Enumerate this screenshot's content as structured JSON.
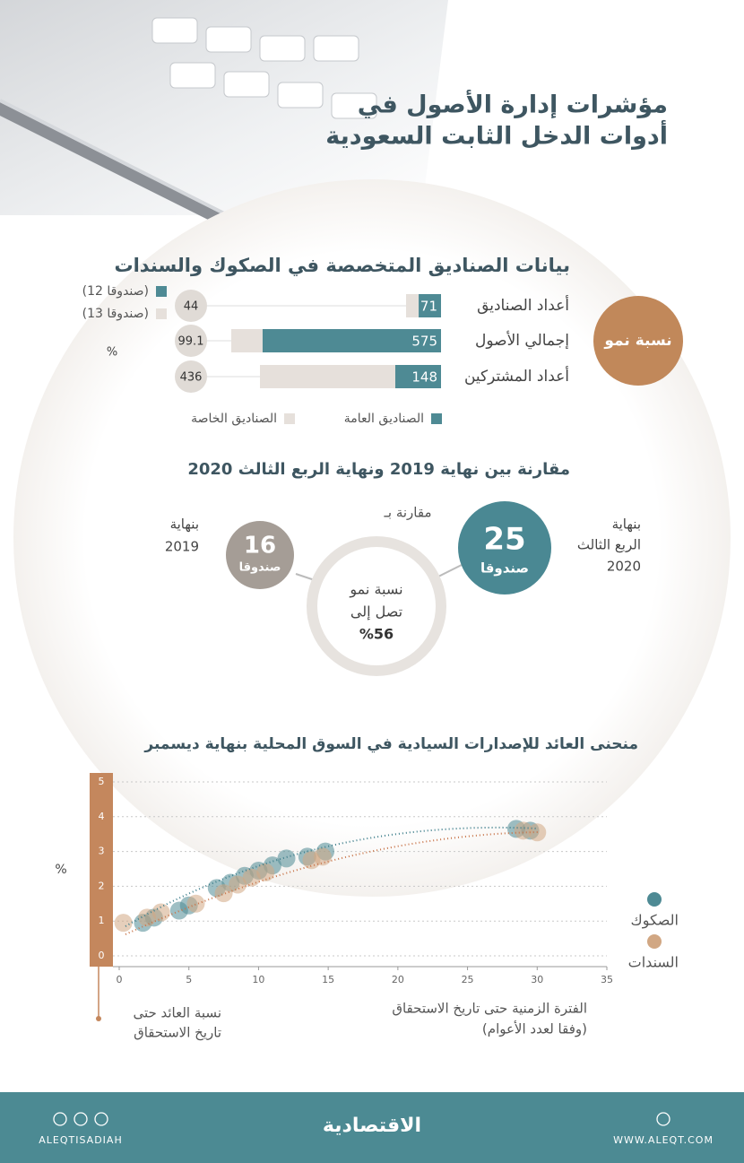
{
  "header": {
    "title_lines": [
      "مؤشرات إدارة الأصول في",
      "أدوات الدخل الثابت السعودية"
    ]
  },
  "chart_data": [
    {
      "type": "bar",
      "orientation": "horizontal",
      "stacked": true,
      "title": "بيانات الصناديق المتخصصة في الصكوك والسندات",
      "categories": [
        "أعداد الصناديق",
        "إجمالي الأصول",
        "أعداد المشتركين"
      ],
      "series": [
        {
          "name": "الصناديق العامة",
          "color": "#4e8a94",
          "values": [
            71,
            575,
            148
          ],
          "count_label": "(12 صندوقا)"
        },
        {
          "name": "الصناديق الخاصة",
          "color": "#e6e0db",
          "values": [
            40,
            101,
            438
          ],
          "count_label": "(13 صندوقا)"
        }
      ],
      "growth": {
        "title": "نسبة نمو",
        "unit": "%",
        "values": [
          44,
          99.1,
          436
        ]
      }
    },
    {
      "type": "scatter",
      "title": "منحنى العائد للإصدارات السيادية في السوق المحلية بنهاية ديسمبر",
      "x_label": [
        "الفترة الزمنية حتى تاريخ الاستحقاق",
        "(وفقا لعدد الأعوام)"
      ],
      "y_label": [
        "نسبة العائد حتى",
        "تاريخ الاستحقاق"
      ],
      "y_unit": "%",
      "xlim": [
        0,
        35
      ],
      "xticks": [
        0,
        5,
        10,
        15,
        20,
        25,
        30,
        35
      ],
      "ylim": [
        0,
        5
      ],
      "yticks": [
        0,
        1,
        2,
        3,
        4,
        5
      ],
      "grid": true,
      "series": [
        {
          "name": "الصكوك",
          "color": "#4e8a94",
          "x": [
            1.7,
            2.5,
            4.3,
            5,
            7,
            8,
            9,
            10,
            11,
            12,
            13.5,
            14.8,
            28.5,
            29.5
          ],
          "values": [
            0.95,
            1.1,
            1.3,
            1.45,
            1.95,
            2.1,
            2.3,
            2.45,
            2.6,
            2.8,
            2.85,
            3.0,
            3.65,
            3.6
          ]
        },
        {
          "name": "السندات",
          "color": "#d1a783",
          "x": [
            0.3,
            2,
            3,
            5.5,
            7.5,
            8.5,
            9.5,
            10.5,
            13.8,
            14.6,
            29,
            30
          ],
          "values": [
            0.95,
            1.1,
            1.25,
            1.5,
            1.8,
            2.05,
            2.25,
            2.4,
            2.75,
            2.85,
            3.6,
            3.55
          ]
        }
      ]
    }
  ],
  "comparison": {
    "title": "مقارنة بين نهاية 2019 ونهاية الربع الثالث 2020",
    "compare_label": "مقارنة بـ",
    "current": {
      "label_lines": [
        "بنهاية",
        "الربع الثالث",
        "2020"
      ],
      "value": 25,
      "unit": "صندوقا"
    },
    "previous": {
      "label_lines": [
        "بنهاية",
        "2019"
      ],
      "value": 16,
      "unit": "صندوقا"
    },
    "growth_lines": [
      "نسبة نمو",
      "تصل إلى",
      "%56"
    ]
  },
  "footer": {
    "handle": "ALEQTISADIAH",
    "logo": "الاقتصادية",
    "website": "WWW.ALEQT.COM"
  }
}
